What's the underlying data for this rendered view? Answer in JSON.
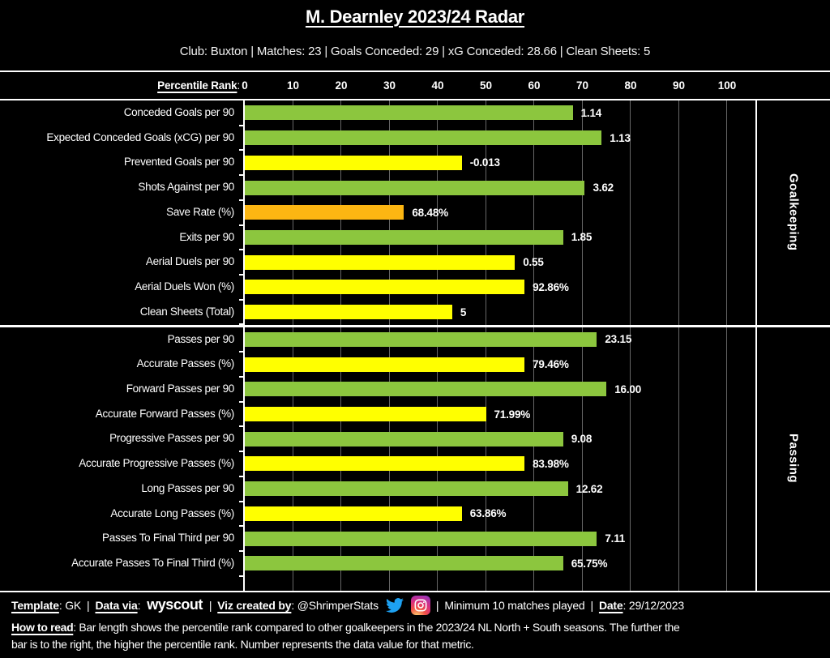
{
  "header": {
    "title": "M. Dearnley 2023/24 Radar",
    "subtitle": "Club: Buxton | Matches: 23 | Goals Conceded: 29 | xG Conceded: 28.66 | Clean Sheets: 5"
  },
  "axis": {
    "label": "Percentile Rank",
    "colon": ":",
    "ticks": [
      0,
      10,
      20,
      30,
      40,
      50,
      60,
      70,
      80,
      90,
      100
    ]
  },
  "colors": {
    "green": "#8CC63E",
    "yellow": "#FFFF00",
    "orange": "#FCB612",
    "gridline": "#676767",
    "background": "#000000",
    "text": "#FFFFFF",
    "twitter_blue": "#1DA1F2"
  },
  "chart_data": {
    "type": "bar",
    "orientation": "horizontal",
    "title": "M. Dearnley 2023/24 Radar",
    "xlabel": "Percentile Rank",
    "xlim": [
      0,
      100
    ],
    "grid": true,
    "sections": [
      {
        "name": "Goalkeeping",
        "rows": [
          {
            "label": "Conceded Goals per 90",
            "percentile": 68,
            "value": "1.14",
            "color": "green"
          },
          {
            "label": "Expected Conceded Goals (xCG) per 90",
            "percentile": 74,
            "value": "1.13",
            "color": "green"
          },
          {
            "label": "Prevented Goals per 90",
            "percentile": 45,
            "value": "-0.013",
            "color": "yellow"
          },
          {
            "label": "Shots Against per 90",
            "percentile": 70.5,
            "value": "3.62",
            "color": "green"
          },
          {
            "label": "Save Rate (%)",
            "percentile": 33,
            "value": "68.48%",
            "color": "orange"
          },
          {
            "label": "Exits per 90",
            "percentile": 66,
            "value": "1.85",
            "color": "green"
          },
          {
            "label": "Aerial Duels per 90",
            "percentile": 56,
            "value": "0.55",
            "color": "yellow"
          },
          {
            "label": "Aerial Duels Won (%)",
            "percentile": 58,
            "value": "92.86%",
            "color": "yellow"
          },
          {
            "label": "Clean Sheets (Total)",
            "percentile": 43,
            "value": "5",
            "color": "yellow"
          }
        ]
      },
      {
        "name": "Passing",
        "rows": [
          {
            "label": "Passes per 90",
            "percentile": 73,
            "value": "23.15",
            "color": "green"
          },
          {
            "label": "Accurate Passes (%)",
            "percentile": 58,
            "value": "79.46%",
            "color": "yellow"
          },
          {
            "label": "Forward Passes per 90",
            "percentile": 75,
            "value": "16.00",
            "color": "green"
          },
          {
            "label": "Accurate Forward Passes (%)",
            "percentile": 50,
            "value": "71.99%",
            "color": "yellow"
          },
          {
            "label": "Progressive Passes per 90",
            "percentile": 66,
            "value": "9.08",
            "color": "green"
          },
          {
            "label": "Accurate Progressive Passes (%)",
            "percentile": 58,
            "value": "83.98%",
            "color": "yellow"
          },
          {
            "label": "Long Passes per 90",
            "percentile": 67,
            "value": "12.62",
            "color": "green"
          },
          {
            "label": "Accurate Long Passes (%)",
            "percentile": 45,
            "value": "63.86%",
            "color": "yellow"
          },
          {
            "label": "Passes To Final Third per 90",
            "percentile": 73,
            "value": "7.11",
            "color": "green"
          },
          {
            "label": "Accurate Passes To Final Third (%)",
            "percentile": 66,
            "value": "65.75%",
            "color": "green"
          }
        ]
      }
    ]
  },
  "footer": {
    "credits": [
      {
        "type": "labeled",
        "label": "Template",
        "text": ": GK"
      },
      {
        "type": "sep",
        "text": "|"
      },
      {
        "type": "labeled",
        "label": "Data via",
        "text": ":"
      },
      {
        "type": "logo",
        "text": "wyscout"
      },
      {
        "type": "sep",
        "text": "|"
      },
      {
        "type": "labeled",
        "label": "Viz created by",
        "text": ": @ShrimperStats"
      },
      {
        "type": "icon",
        "name": "twitter-icon"
      },
      {
        "type": "icon",
        "name": "instagram-icon"
      },
      {
        "type": "sep",
        "text": "|"
      },
      {
        "type": "text",
        "text": "Minimum 10 matches played"
      },
      {
        "type": "sep",
        "text": "|"
      },
      {
        "type": "labeled",
        "label": "Date",
        "text": ": 29/12/2023"
      }
    ],
    "how_to_read": {
      "label": "How to read",
      "line1_rest": ": Bar length shows the percentile rank compared to other goalkeepers in the 2023/24 NL North + South seasons. The further the",
      "line2": "bar is to the right, the higher the percentile rank. Number represents the data value for that metric."
    }
  }
}
